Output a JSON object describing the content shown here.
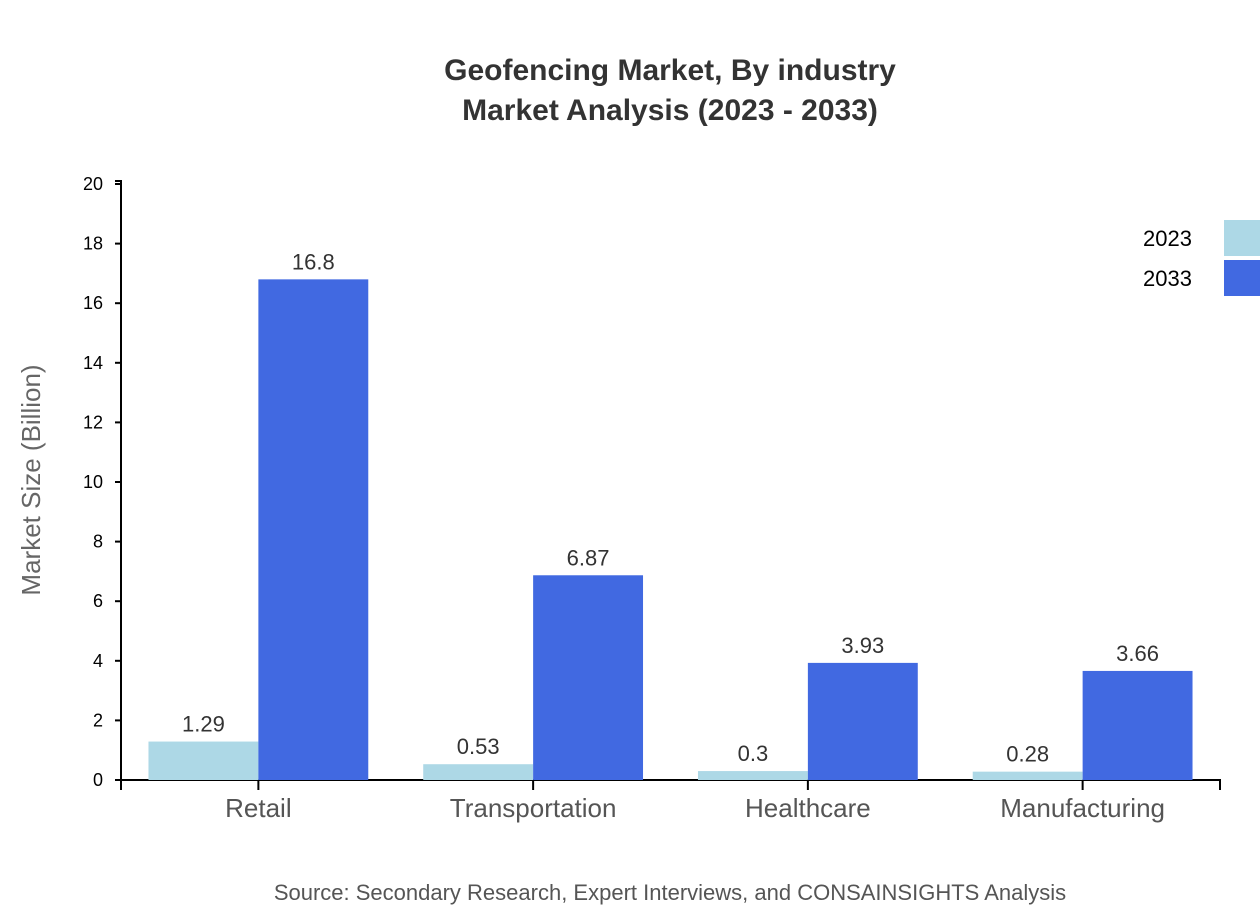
{
  "chart_data": {
    "type": "bar",
    "title": "Geofencing Market, By industry",
    "subtitle": "Market Analysis (2023 - 2033)",
    "xlabel": "",
    "ylabel": "Market Size (Billion)",
    "ylim": [
      0,
      20
    ],
    "yticks": [
      0,
      2,
      4,
      6,
      8,
      10,
      12,
      14,
      16,
      18,
      20
    ],
    "categories": [
      "Retail",
      "Transportation",
      "Healthcare",
      "Manufacturing"
    ],
    "series": [
      {
        "name": "2023",
        "color": "#add8e6",
        "values": [
          1.29,
          0.53,
          0.3,
          0.28
        ]
      },
      {
        "name": "2033",
        "color": "#4169e1",
        "values": [
          16.8,
          6.87,
          3.93,
          3.66
        ]
      }
    ],
    "grid": false,
    "legend": "top-right",
    "source": "Source: Secondary Research, Expert Interviews, and CONSAINSIGHTS Analysis"
  }
}
